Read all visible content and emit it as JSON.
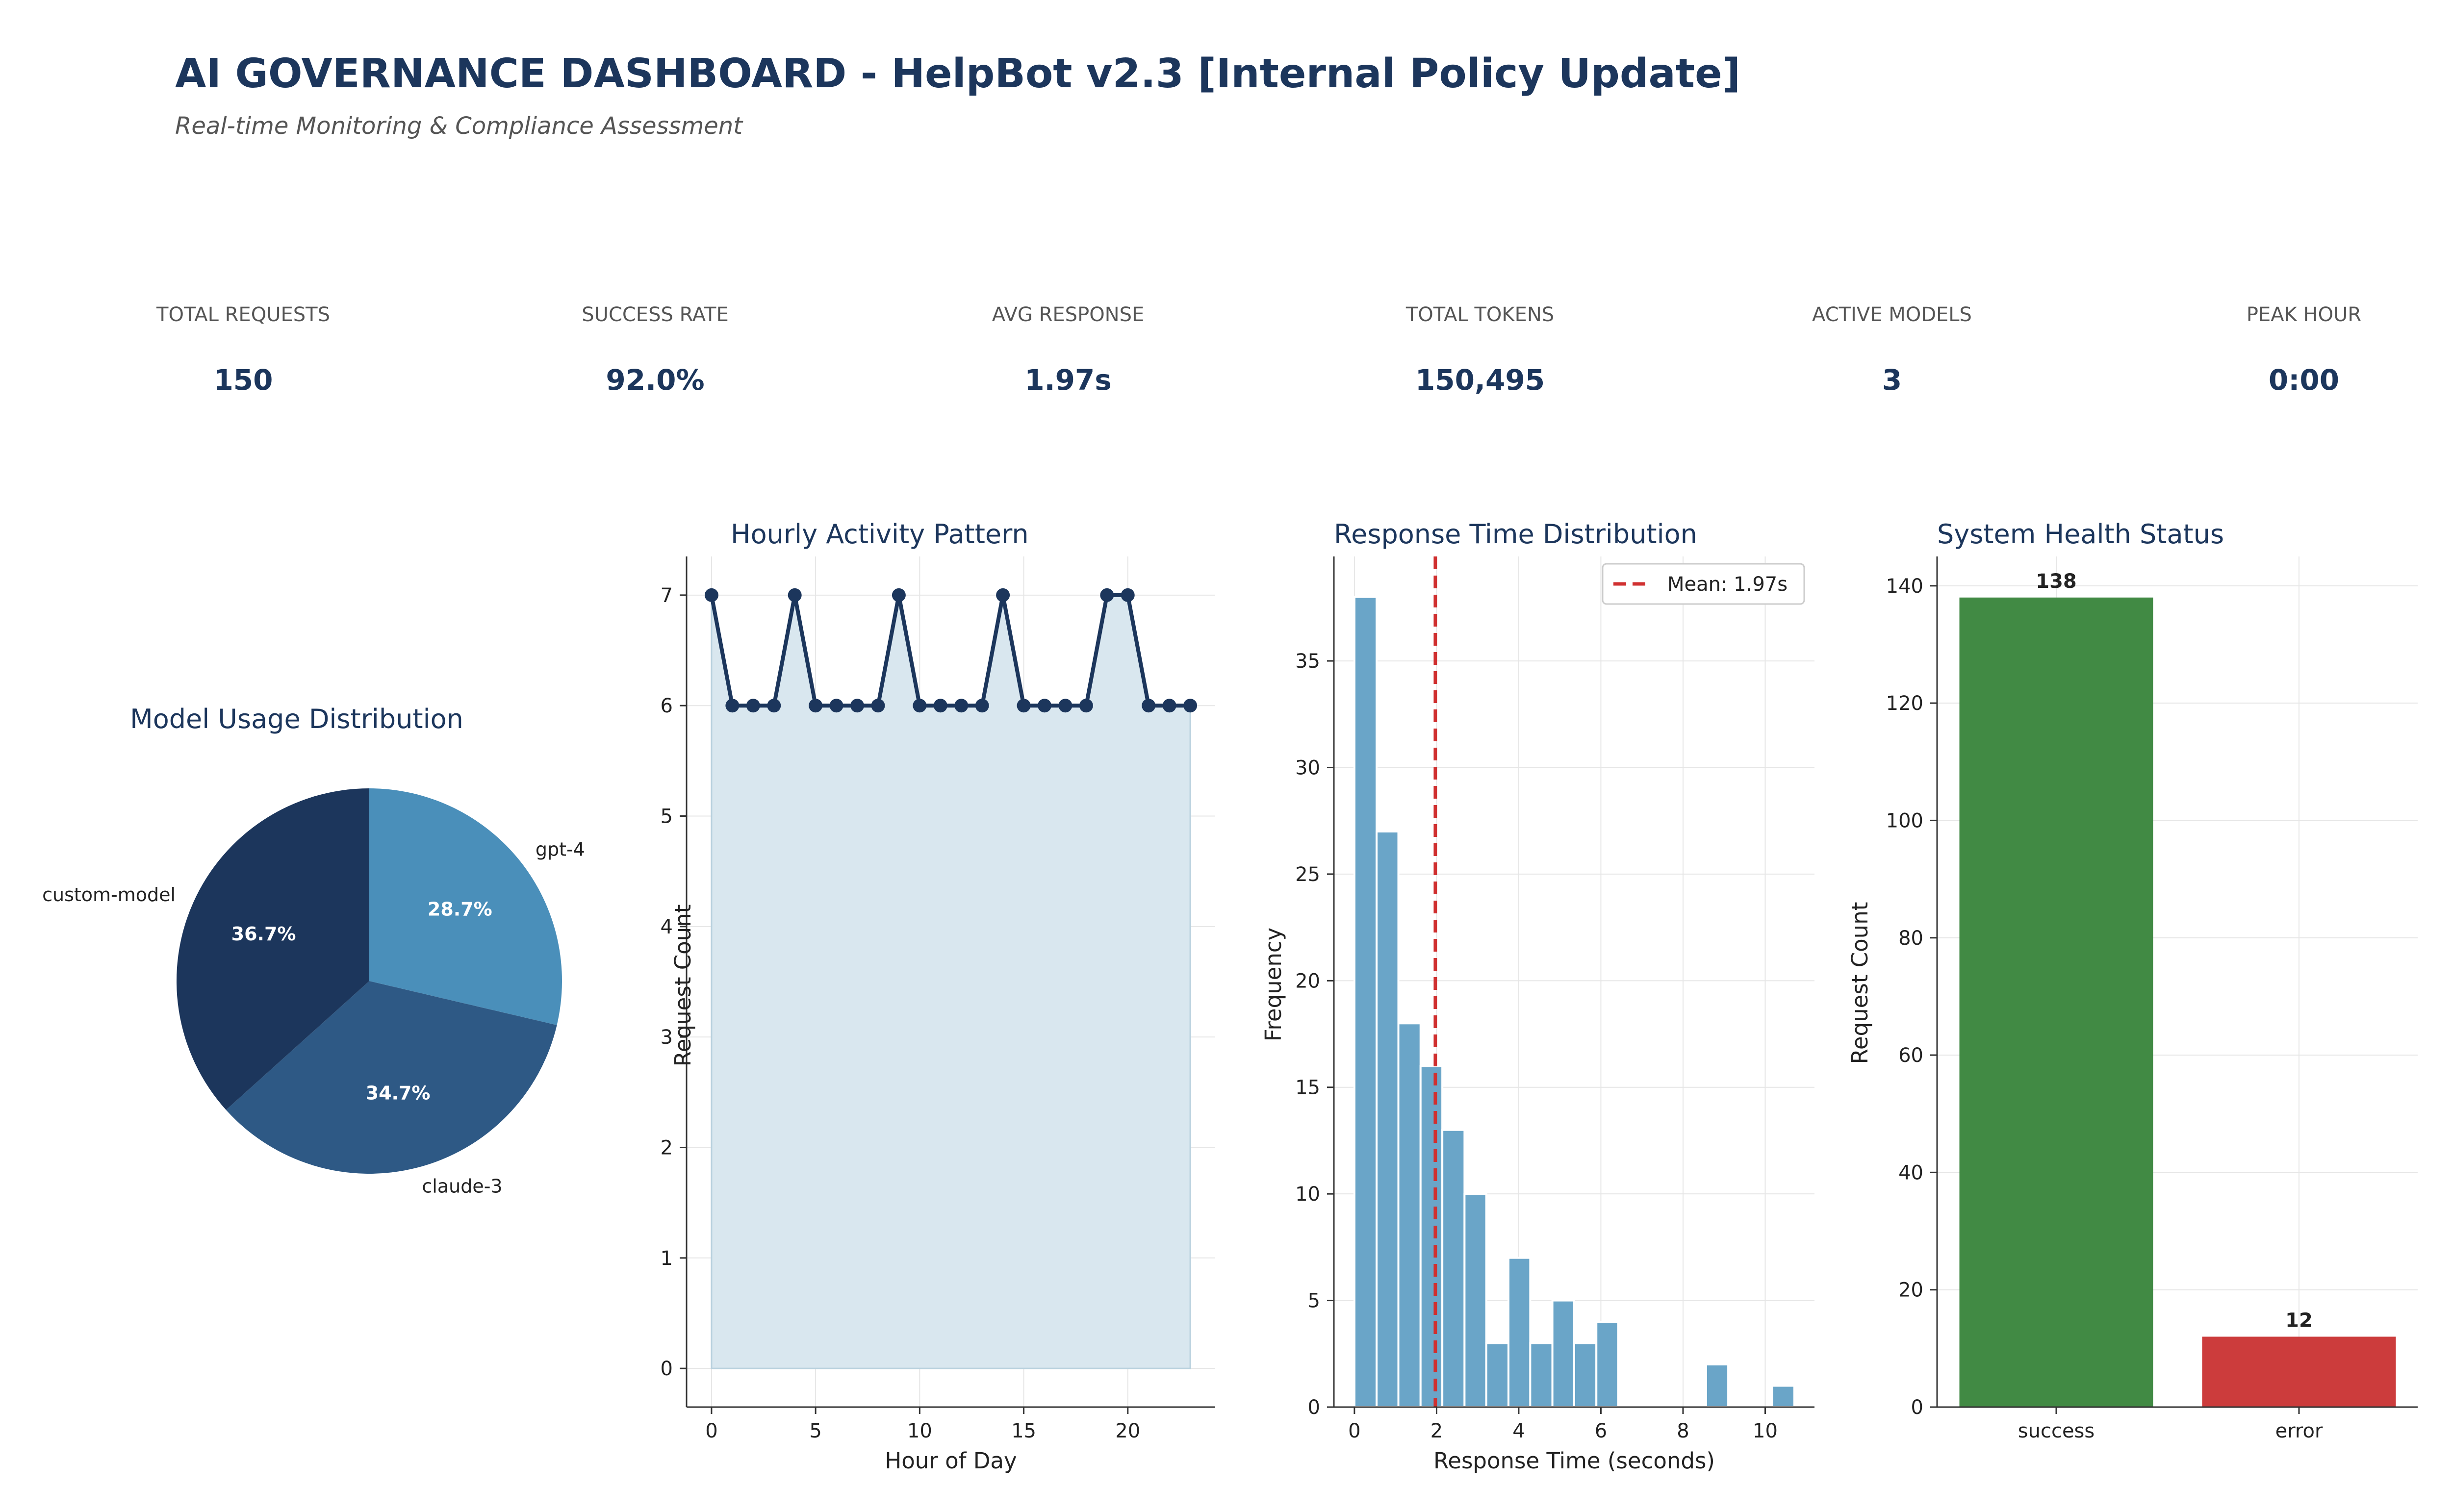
{
  "header": {
    "title": "AI GOVERNANCE DASHBOARD - HelpBot v2.3 [Internal Policy Update]",
    "subtitle": "Real-time Monitoring & Compliance Assessment"
  },
  "kpis": [
    {
      "label": "TOTAL REQUESTS",
      "value": "150"
    },
    {
      "label": "SUCCESS RATE",
      "value": "92.0%"
    },
    {
      "label": "AVG RESPONSE",
      "value": "1.97s"
    },
    {
      "label": "TOTAL TOKENS",
      "value": "150,495"
    },
    {
      "label": "ACTIVE MODELS",
      "value": "3"
    },
    {
      "label": "PEAK HOUR",
      "value": "0:00"
    }
  ],
  "colors": {
    "navy": "#1c365c",
    "pie": [
      "#4a8fba",
      "#2e5985",
      "#1c365c"
    ],
    "area_fill": "#d9e7ef",
    "hist": "#6aa5c8",
    "mean_line": "#d03030",
    "success": "#418a44",
    "error": "#cc3c3c"
  },
  "chart_data": [
    {
      "type": "pie",
      "title": "Model Usage Distribution",
      "slices": [
        {
          "label": "gpt-4",
          "value": 28.7,
          "pct": "28.7%"
        },
        {
          "label": "claude-3",
          "value": 34.7,
          "pct": "34.7%"
        },
        {
          "label": "custom-model",
          "value": 36.7,
          "pct": "36.7%"
        }
      ]
    },
    {
      "type": "line",
      "title": "Hourly Activity Pattern",
      "xlabel": "Hour of Day",
      "ylabel": "Request Count",
      "x": [
        0,
        1,
        2,
        3,
        4,
        5,
        6,
        7,
        8,
        9,
        10,
        11,
        12,
        13,
        14,
        15,
        16,
        17,
        18,
        19,
        20,
        21,
        22,
        23
      ],
      "y": [
        7,
        6,
        6,
        6,
        7,
        6,
        6,
        6,
        6,
        7,
        6,
        6,
        6,
        6,
        7,
        6,
        6,
        6,
        6,
        7,
        7,
        6,
        6,
        6
      ],
      "xticks": [
        0,
        5,
        10,
        15,
        20
      ],
      "yticks": [
        0,
        1,
        2,
        3,
        4,
        5,
        6,
        7
      ],
      "xlim": [
        -1.2,
        24.2
      ],
      "ylim": [
        -0.35,
        7.35
      ],
      "area_fill": true,
      "grid": true
    },
    {
      "type": "bar",
      "subtype": "histogram",
      "title": "Response Time Distribution",
      "xlabel": "Response Time (seconds)",
      "ylabel": "Frequency",
      "bins": [
        {
          "start": 0.0,
          "end": 0.54,
          "count": 38
        },
        {
          "start": 0.54,
          "end": 1.07,
          "count": 27
        },
        {
          "start": 1.07,
          "end": 1.61,
          "count": 18
        },
        {
          "start": 1.61,
          "end": 2.14,
          "count": 16
        },
        {
          "start": 2.14,
          "end": 2.68,
          "count": 13
        },
        {
          "start": 2.68,
          "end": 3.21,
          "count": 10
        },
        {
          "start": 3.21,
          "end": 3.75,
          "count": 3
        },
        {
          "start": 3.75,
          "end": 4.28,
          "count": 7
        },
        {
          "start": 4.28,
          "end": 4.82,
          "count": 3
        },
        {
          "start": 4.82,
          "end": 5.35,
          "count": 5
        },
        {
          "start": 5.35,
          "end": 5.89,
          "count": 3
        },
        {
          "start": 5.89,
          "end": 6.42,
          "count": 4
        },
        {
          "start": 8.56,
          "end": 9.1,
          "count": 2
        },
        {
          "start": 10.17,
          "end": 10.71,
          "count": 1
        }
      ],
      "mean": 1.97,
      "mean_label": "Mean: 1.97s",
      "xticks": [
        0,
        2,
        4,
        6,
        8,
        10
      ],
      "yticks": [
        0,
        5,
        10,
        15,
        20,
        25,
        30,
        35
      ],
      "xlim": [
        -0.5,
        11.2
      ],
      "ylim": [
        0,
        39.9
      ],
      "legend": "top-right",
      "grid": true
    },
    {
      "type": "bar",
      "title": "System Health Status",
      "ylabel": "Request Count",
      "categories": [
        "success",
        "error"
      ],
      "values": [
        138,
        12
      ],
      "value_labels": [
        "138",
        "12"
      ],
      "yticks": [
        0,
        20,
        40,
        60,
        80,
        100,
        120,
        140
      ],
      "ylim": [
        0,
        145
      ],
      "grid": true
    }
  ]
}
